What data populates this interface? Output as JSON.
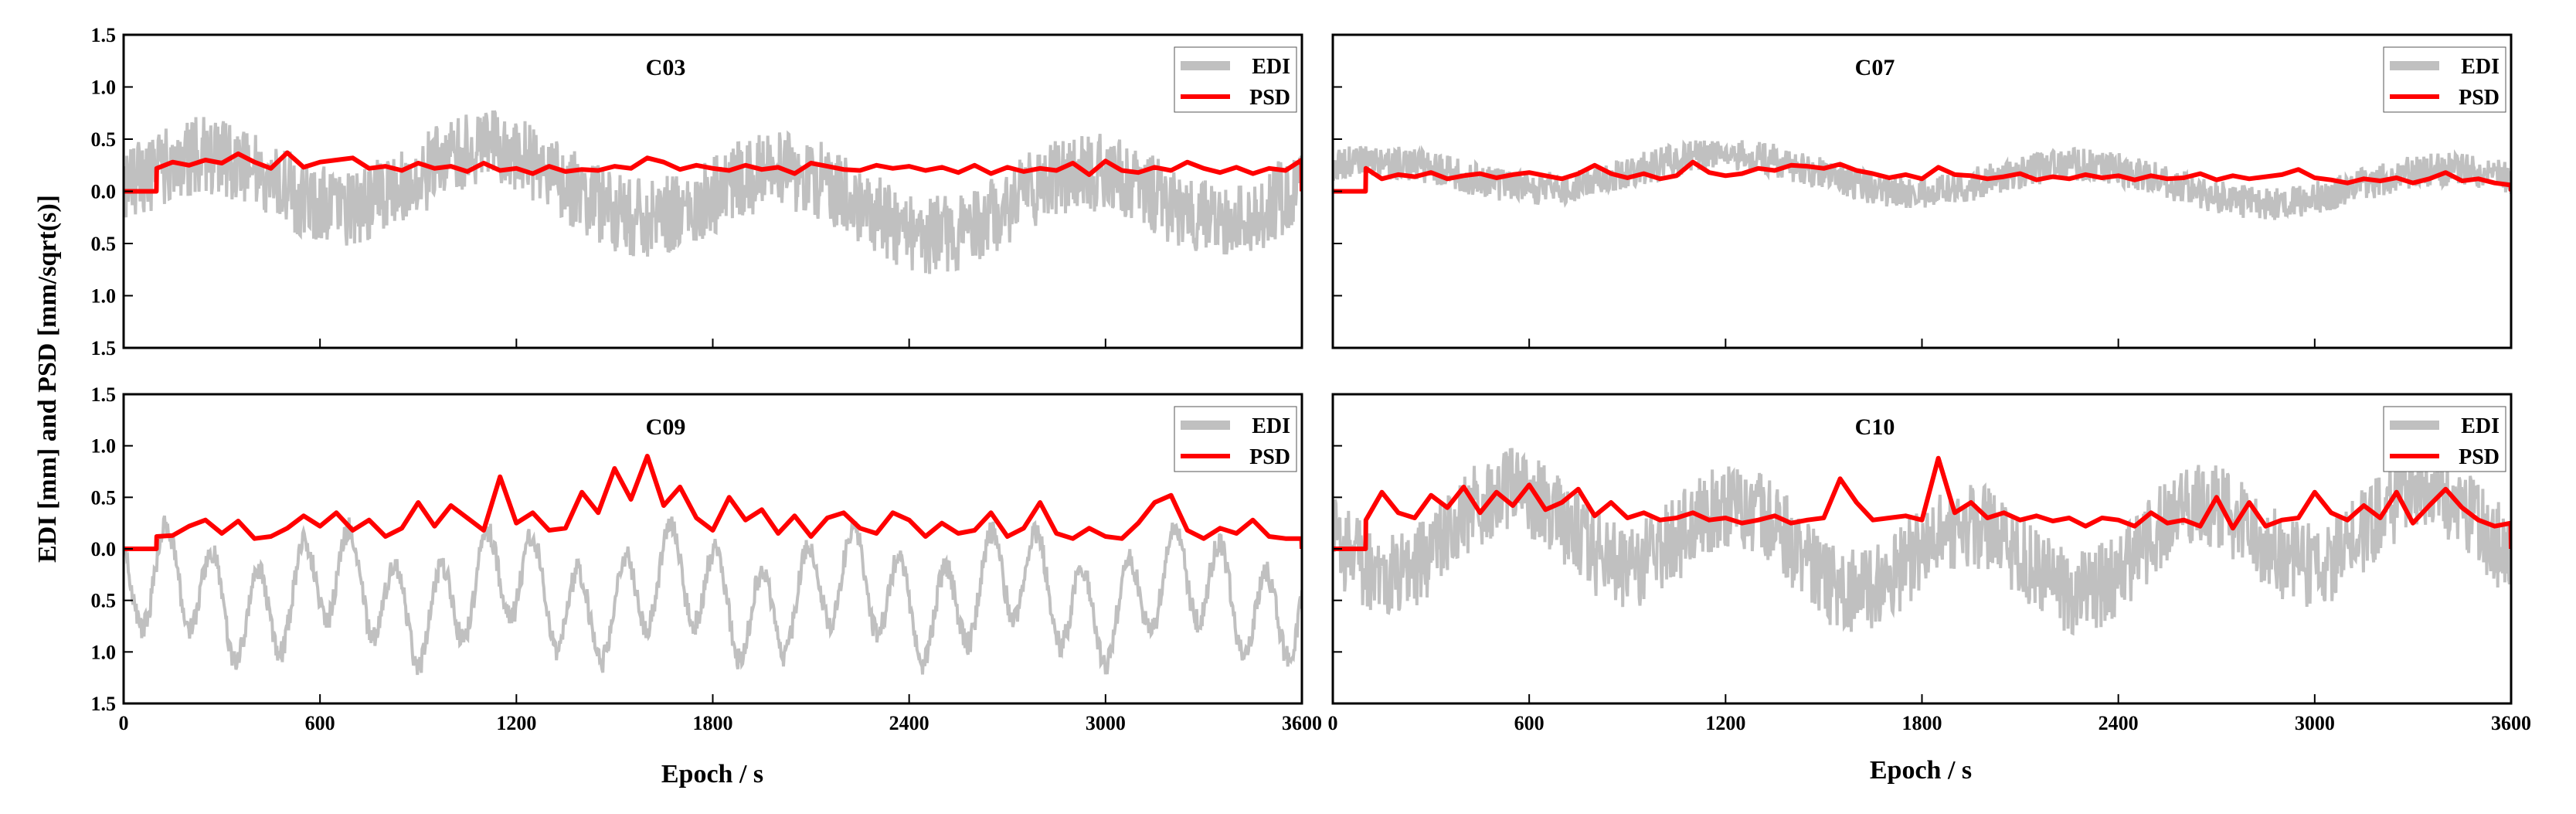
{
  "chart_data": {
    "type": "line",
    "ylabel": "EDI [mm] and PSD [mm/sqrt(s)]",
    "xlabel": "Epoch / s",
    "xlim": [
      0,
      3600
    ],
    "ylim": [
      -1.5,
      1.5
    ],
    "xticks": [
      0,
      600,
      1200,
      1800,
      2400,
      3000,
      3600
    ],
    "yticks": [
      1.5,
      1.0,
      0.5,
      0.0,
      0.5,
      1.0,
      1.5
    ],
    "colors": {
      "EDI": "#c0c0c0",
      "PSD": "#ff0000"
    },
    "legend": [
      "EDI",
      "PSD"
    ],
    "panels": [
      {
        "title": "C03",
        "position": "top-left",
        "EDI": {
          "base": 0.0,
          "amp": 0.28,
          "noise": 0.38,
          "wave_period": 900,
          "seed": 3
        },
        "PSD": {
          "x": [
            0,
            100,
            101,
            150,
            200,
            250,
            300,
            350,
            400,
            450,
            500,
            550,
            600,
            650,
            700,
            750,
            800,
            850,
            900,
            950,
            1000,
            1050,
            1100,
            1150,
            1200,
            1250,
            1300,
            1350,
            1400,
            1450,
            1500,
            1550,
            1600,
            1650,
            1700,
            1750,
            1800,
            1850,
            1900,
            1950,
            2000,
            2050,
            2100,
            2150,
            2200,
            2250,
            2300,
            2350,
            2400,
            2450,
            2500,
            2550,
            2600,
            2650,
            2700,
            2750,
            2800,
            2850,
            2900,
            2950,
            3000,
            3050,
            3100,
            3150,
            3200,
            3250,
            3300,
            3350,
            3400,
            3450,
            3500,
            3550,
            3599,
            3600
          ],
          "y": [
            0.0,
            0.0,
            0.22,
            0.28,
            0.25,
            0.3,
            0.27,
            0.36,
            0.28,
            0.22,
            0.37,
            0.23,
            0.28,
            0.3,
            0.32,
            0.22,
            0.24,
            0.2,
            0.27,
            0.22,
            0.24,
            0.19,
            0.27,
            0.2,
            0.22,
            0.17,
            0.24,
            0.19,
            0.21,
            0.2,
            0.24,
            0.22,
            0.32,
            0.28,
            0.21,
            0.25,
            0.22,
            0.2,
            0.25,
            0.21,
            0.23,
            0.17,
            0.27,
            0.24,
            0.21,
            0.2,
            0.25,
            0.22,
            0.24,
            0.2,
            0.23,
            0.18,
            0.25,
            0.17,
            0.23,
            0.19,
            0.22,
            0.2,
            0.27,
            0.16,
            0.29,
            0.2,
            0.18,
            0.23,
            0.2,
            0.28,
            0.22,
            0.18,
            0.23,
            0.17,
            0.22,
            0.2,
            0.3,
            0.0
          ]
        }
      },
      {
        "title": "C07",
        "position": "top-right",
        "EDI": {
          "base": 0.12,
          "amp": 0.16,
          "noise": 0.16,
          "wave_period": 1100,
          "seed": 7
        },
        "PSD": {
          "x": [
            0,
            100,
            101,
            150,
            200,
            250,
            300,
            350,
            400,
            450,
            500,
            550,
            600,
            650,
            700,
            750,
            800,
            850,
            900,
            950,
            1000,
            1050,
            1100,
            1150,
            1200,
            1250,
            1300,
            1350,
            1400,
            1450,
            1500,
            1550,
            1600,
            1650,
            1700,
            1750,
            1800,
            1850,
            1900,
            1950,
            2000,
            2050,
            2100,
            2150,
            2200,
            2250,
            2300,
            2350,
            2400,
            2450,
            2500,
            2550,
            2600,
            2650,
            2700,
            2750,
            2800,
            2850,
            2900,
            2950,
            3000,
            3050,
            3100,
            3150,
            3200,
            3250,
            3300,
            3350,
            3400,
            3450,
            3500,
            3550,
            3599,
            3600
          ],
          "y": [
            0.0,
            0.0,
            0.22,
            0.12,
            0.16,
            0.14,
            0.18,
            0.12,
            0.15,
            0.17,
            0.13,
            0.16,
            0.18,
            0.15,
            0.12,
            0.17,
            0.25,
            0.17,
            0.13,
            0.17,
            0.12,
            0.15,
            0.28,
            0.18,
            0.15,
            0.17,
            0.22,
            0.2,
            0.25,
            0.24,
            0.22,
            0.26,
            0.2,
            0.17,
            0.13,
            0.16,
            0.12,
            0.23,
            0.16,
            0.15,
            0.12,
            0.14,
            0.17,
            0.11,
            0.14,
            0.12,
            0.16,
            0.13,
            0.15,
            0.11,
            0.15,
            0.12,
            0.13,
            0.17,
            0.11,
            0.15,
            0.12,
            0.14,
            0.16,
            0.21,
            0.13,
            0.11,
            0.08,
            0.12,
            0.1,
            0.13,
            0.08,
            0.12,
            0.18,
            0.1,
            0.12,
            0.08,
            0.06,
            0.0
          ]
        }
      },
      {
        "title": "C09",
        "position": "bottom-left",
        "EDI": {
          "base": -0.45,
          "amp": 0.45,
          "noise": 0.12,
          "wave_period": 140,
          "seed": 9
        },
        "PSD": {
          "x": [
            0,
            100,
            101,
            150,
            200,
            250,
            300,
            350,
            400,
            450,
            500,
            550,
            600,
            650,
            700,
            750,
            800,
            850,
            900,
            950,
            1000,
            1050,
            1100,
            1150,
            1200,
            1250,
            1300,
            1350,
            1400,
            1450,
            1500,
            1550,
            1600,
            1650,
            1700,
            1750,
            1800,
            1850,
            1900,
            1950,
            2000,
            2050,
            2100,
            2150,
            2200,
            2250,
            2300,
            2350,
            2400,
            2450,
            2500,
            2550,
            2600,
            2650,
            2700,
            2750,
            2800,
            2850,
            2900,
            2950,
            3000,
            3050,
            3100,
            3150,
            3200,
            3250,
            3300,
            3350,
            3400,
            3450,
            3500,
            3550,
            3599,
            3600
          ],
          "y": [
            0.0,
            0.0,
            0.12,
            0.13,
            0.22,
            0.28,
            0.15,
            0.27,
            0.1,
            0.12,
            0.2,
            0.32,
            0.22,
            0.35,
            0.18,
            0.28,
            0.12,
            0.2,
            0.45,
            0.22,
            0.42,
            0.3,
            0.18,
            0.7,
            0.25,
            0.35,
            0.18,
            0.2,
            0.55,
            0.35,
            0.78,
            0.48,
            0.9,
            0.42,
            0.6,
            0.3,
            0.18,
            0.5,
            0.28,
            0.38,
            0.15,
            0.32,
            0.12,
            0.3,
            0.35,
            0.2,
            0.15,
            0.35,
            0.28,
            0.12,
            0.25,
            0.15,
            0.18,
            0.35,
            0.12,
            0.2,
            0.45,
            0.15,
            0.1,
            0.2,
            0.12,
            0.1,
            0.25,
            0.45,
            0.52,
            0.18,
            0.1,
            0.2,
            0.15,
            0.28,
            0.12,
            0.1,
            0.1,
            0.0
          ]
        }
      },
      {
        "title": "C10",
        "position": "bottom-right",
        "EDI": {
          "base": 0.05,
          "amp": 0.35,
          "noise": 0.42,
          "wave_period": 700,
          "seed": 10
        },
        "PSD": {
          "x": [
            0,
            100,
            101,
            150,
            200,
            250,
            300,
            350,
            400,
            450,
            500,
            550,
            600,
            650,
            700,
            750,
            800,
            850,
            900,
            950,
            1000,
            1050,
            1100,
            1150,
            1200,
            1250,
            1300,
            1350,
            1400,
            1450,
            1500,
            1550,
            1600,
            1650,
            1700,
            1750,
            1800,
            1850,
            1900,
            1950,
            2000,
            2050,
            2100,
            2150,
            2200,
            2250,
            2300,
            2350,
            2400,
            2450,
            2500,
            2550,
            2600,
            2650,
            2700,
            2750,
            2800,
            2850,
            2900,
            2950,
            3000,
            3050,
            3100,
            3150,
            3200,
            3250,
            3300,
            3350,
            3400,
            3450,
            3500,
            3550,
            3599,
            3600
          ],
          "y": [
            0.0,
            0.0,
            0.28,
            0.55,
            0.35,
            0.3,
            0.52,
            0.4,
            0.6,
            0.35,
            0.55,
            0.42,
            0.62,
            0.38,
            0.45,
            0.58,
            0.32,
            0.45,
            0.3,
            0.35,
            0.28,
            0.3,
            0.35,
            0.28,
            0.3,
            0.25,
            0.28,
            0.32,
            0.25,
            0.28,
            0.3,
            0.68,
            0.45,
            0.28,
            0.3,
            0.32,
            0.28,
            0.88,
            0.35,
            0.45,
            0.3,
            0.35,
            0.28,
            0.32,
            0.27,
            0.3,
            0.22,
            0.3,
            0.28,
            0.22,
            0.35,
            0.25,
            0.28,
            0.22,
            0.5,
            0.2,
            0.45,
            0.22,
            0.28,
            0.3,
            0.55,
            0.35,
            0.28,
            0.42,
            0.3,
            0.55,
            0.25,
            0.42,
            0.58,
            0.4,
            0.28,
            0.22,
            0.25,
            0.0
          ]
        }
      }
    ]
  }
}
